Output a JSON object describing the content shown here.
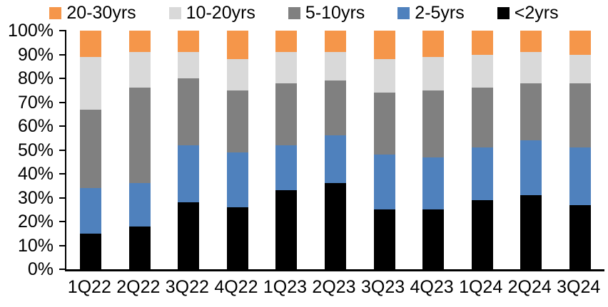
{
  "chart_data": {
    "type": "bar",
    "stacked": true,
    "orientation": "vertical",
    "title": "",
    "xlabel": "",
    "ylabel": "",
    "ylim": [
      0,
      100
    ],
    "grid": false,
    "legend_position": "top",
    "legend_order": [
      "20-30yrs",
      "10-20yrs",
      "5-10yrs",
      "2-5yrs",
      "<2yrs"
    ],
    "yticks": [
      "0%",
      "10%",
      "20%",
      "30%",
      "40%",
      "50%",
      "60%",
      "70%",
      "80%",
      "90%",
      "100%"
    ],
    "categories": [
      "1Q22",
      "2Q22",
      "3Q22",
      "4Q22",
      "1Q23",
      "2Q23",
      "3Q23",
      "4Q23",
      "1Q24",
      "2Q24",
      "3Q24"
    ],
    "series": [
      {
        "name": "<2yrs",
        "color": "#000000",
        "values": [
          15,
          18,
          28,
          26,
          33,
          36,
          25,
          25,
          29,
          31,
          27
        ]
      },
      {
        "name": "2-5yrs",
        "color": "#4F81BD",
        "values": [
          19,
          18,
          24,
          23,
          19,
          20,
          23,
          22,
          22,
          23,
          24
        ]
      },
      {
        "name": "5-10yrs",
        "color": "#808080",
        "values": [
          33,
          40,
          28,
          26,
          26,
          23,
          26,
          28,
          25,
          24,
          27
        ]
      },
      {
        "name": "10-20yrs",
        "color": "#D9D9D9",
        "values": [
          22,
          15,
          11,
          13,
          13,
          12,
          14,
          14,
          14,
          13,
          12
        ]
      },
      {
        "name": "20-30yrs",
        "color": "#F5964A",
        "values": [
          11,
          9,
          9,
          12,
          9,
          9,
          12,
          11,
          10,
          9,
          10
        ]
      }
    ],
    "colors": {
      "axis": "#000000",
      "text": "#000000",
      "background": "#FFFFFF"
    }
  }
}
